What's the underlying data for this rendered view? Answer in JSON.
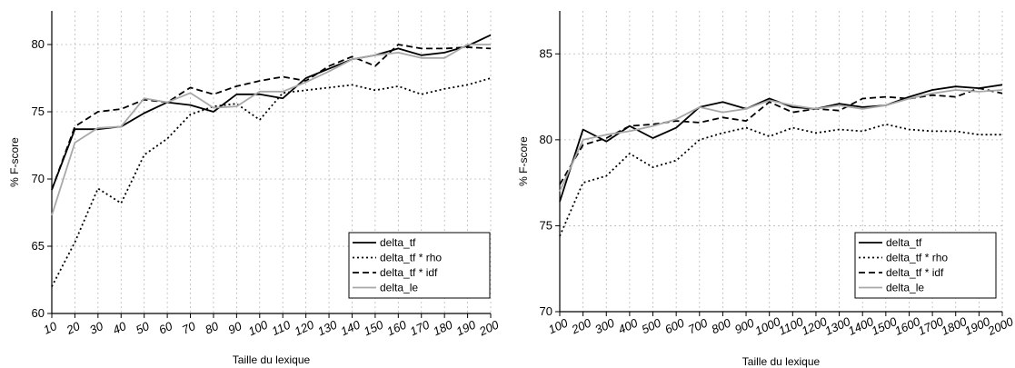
{
  "chart_data": [
    {
      "type": "line",
      "xlabel": "Taille du lexique",
      "ylabel": "% F-score",
      "ylim": [
        60,
        82.5
      ],
      "yticks": [
        60,
        65,
        70,
        75,
        80
      ],
      "categories": [
        "10",
        "20",
        "30",
        "40",
        "50",
        "60",
        "70",
        "80",
        "90",
        "100",
        "110",
        "120",
        "130",
        "140",
        "150",
        "160",
        "170",
        "180",
        "190",
        "200"
      ],
      "legend_position": "bottom-right",
      "series": [
        {
          "name": "delta_tf",
          "color": "#000000",
          "dash": "solid",
          "values": [
            69.2,
            73.7,
            73.7,
            73.9,
            74.9,
            75.7,
            75.5,
            75.0,
            76.3,
            76.3,
            76.0,
            77.5,
            78.2,
            78.9,
            79.2,
            79.7,
            79.2,
            79.4,
            79.9,
            80.7
          ]
        },
        {
          "name": "delta_tf * rho",
          "color": "#000000",
          "dash": "dotted",
          "values": [
            62.0,
            65.3,
            69.3,
            68.2,
            71.8,
            73.0,
            74.8,
            75.4,
            75.6,
            74.4,
            76.4,
            76.6,
            76.8,
            77.0,
            76.6,
            76.9,
            76.3,
            76.7,
            77.0,
            77.5
          ]
        },
        {
          "name": "delta_tf * idf",
          "color": "#000000",
          "dash": "dashed",
          "values": [
            69.2,
            73.9,
            75.0,
            75.2,
            75.9,
            75.7,
            76.8,
            76.3,
            76.9,
            77.3,
            77.6,
            77.3,
            78.4,
            79.1,
            78.4,
            80.0,
            79.7,
            79.7,
            79.8,
            79.7
          ]
        },
        {
          "name": "delta_le",
          "color": "#a8a8a8",
          "dash": "solid",
          "values": [
            67.3,
            72.7,
            73.8,
            73.9,
            76.0,
            75.7,
            76.4,
            75.3,
            75.4,
            76.5,
            76.5,
            77.2,
            78.0,
            78.9,
            79.2,
            79.4,
            79.0,
            79.0,
            80.0,
            80.0
          ]
        }
      ]
    },
    {
      "type": "line",
      "xlabel": "Taille du lexique",
      "ylabel": "% F-score",
      "ylim": [
        70,
        87.5
      ],
      "yticks": [
        70,
        75,
        80,
        85
      ],
      "categories": [
        "100",
        "200",
        "300",
        "400",
        "500",
        "600",
        "700",
        "800",
        "900",
        "1000",
        "1100",
        "1200",
        "1300",
        "1400",
        "1500",
        "1600",
        "1700",
        "1800",
        "1900",
        "2000"
      ],
      "legend_position": "bottom-right",
      "series": [
        {
          "name": "delta_tf",
          "color": "#000000",
          "dash": "solid",
          "values": [
            76.4,
            80.6,
            79.9,
            80.8,
            80.1,
            80.7,
            81.9,
            82.2,
            81.8,
            82.4,
            81.9,
            81.8,
            82.1,
            81.9,
            82.0,
            82.5,
            82.9,
            83.1,
            83.0,
            83.2
          ]
        },
        {
          "name": "delta_tf * rho",
          "color": "#000000",
          "dash": "dotted",
          "values": [
            74.4,
            77.5,
            77.9,
            79.2,
            78.4,
            78.8,
            80.0,
            80.4,
            80.7,
            80.2,
            80.7,
            80.4,
            80.6,
            80.5,
            80.9,
            80.6,
            80.5,
            80.5,
            80.3,
            80.3
          ]
        },
        {
          "name": "delta_tf * idf",
          "color": "#000000",
          "dash": "dashed",
          "values": [
            77.4,
            79.7,
            80.1,
            80.8,
            80.9,
            81.1,
            81.0,
            81.3,
            81.1,
            82.2,
            81.6,
            81.8,
            81.7,
            82.4,
            82.5,
            82.4,
            82.6,
            82.5,
            83.0,
            82.7
          ]
        },
        {
          "name": "delta_le",
          "color": "#a8a8a8",
          "dash": "solid",
          "values": [
            77.0,
            80.0,
            80.3,
            80.5,
            80.8,
            81.2,
            81.9,
            81.6,
            81.8,
            82.3,
            82.0,
            81.8,
            82.0,
            81.8,
            82.0,
            82.4,
            82.7,
            82.9,
            82.8,
            82.9
          ]
        }
      ]
    }
  ]
}
